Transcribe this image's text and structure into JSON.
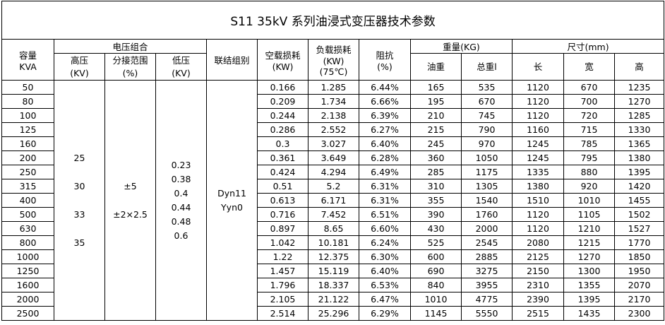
{
  "title": "S11 35kV  系列油浸式变压器技术参数",
  "headers": {
    "capacity": [
      "容量",
      "KVA"
    ],
    "voltage_group": "电压组合",
    "hv": [
      "高压",
      "(KV)"
    ],
    "tap": [
      "分接范围",
      "(%)"
    ],
    "lv": [
      "低压",
      "(KV)"
    ],
    "connection": "联结组别",
    "no_load_loss": [
      "空载损耗",
      "(KW)"
    ],
    "load_loss": [
      "负载损耗",
      "(KW)",
      "(75℃)"
    ],
    "impedance": [
      "阻抗",
      "(%)"
    ],
    "weight": "重量(KG)",
    "oil_weight": "油重",
    "total_weight": "总重l",
    "dimension": "尺寸(mm)",
    "length": "长",
    "width": "宽",
    "height": "高"
  },
  "merged": {
    "hv_values": [
      "25",
      "30",
      "33",
      "35"
    ],
    "tap_values": [
      "±5",
      "±2×2.5"
    ],
    "lv_values": [
      "0.23",
      "0.38",
      "0.4",
      "0.44",
      "0.48",
      "0.6"
    ],
    "connection_values": [
      "Dyn11",
      "Yyn0"
    ]
  },
  "rows": [
    [
      "50",
      "0.166",
      "1.285",
      "6.44%",
      "165",
      "535",
      "1120",
      "670",
      "1235"
    ],
    [
      "80",
      "0.209",
      "1.734",
      "6.66%",
      "195",
      "670",
      "1120",
      "700",
      "1270"
    ],
    [
      "100",
      "0.244",
      "2.138",
      "6.39%",
      "210",
      "745",
      "1120",
      "720",
      "1285"
    ],
    [
      "125",
      "0.286",
      "2.552",
      "6.27%",
      "215",
      "790",
      "1160",
      "715",
      "1330"
    ],
    [
      "160",
      "0.3",
      "3.027",
      "6.40%",
      "245",
      "970",
      "1245",
      "785",
      "1365"
    ],
    [
      "200",
      "0.361",
      "3.649",
      "6.28%",
      "360",
      "1050",
      "1245",
      "795",
      "1380"
    ],
    [
      "250",
      "0.424",
      "4.294",
      "6.49%",
      "285",
      "1175",
      "1335",
      "880",
      "1395"
    ],
    [
      "315",
      "0.51",
      "5.2",
      "6.31%",
      "310",
      "1305",
      "1380",
      "920",
      "1420"
    ],
    [
      "400",
      "0.613",
      "6.171",
      "6.31%",
      "355",
      "1540",
      "1510",
      "1010",
      "1455"
    ],
    [
      "500",
      "0.716",
      "7.452",
      "6.51%",
      "390",
      "1760",
      "1120",
      "1105",
      "1502"
    ],
    [
      "630",
      "0.897",
      "8.65",
      "6.60%",
      "430",
      "2000",
      "1120",
      "1210",
      "1527"
    ],
    [
      "800",
      "1.042",
      "10.181",
      "6.24%",
      "525",
      "2545",
      "2080",
      "1215",
      "1770"
    ],
    [
      "1000",
      "1.22",
      "12.375",
      "6.30%",
      "600",
      "2885",
      "2125",
      "1270",
      "1850"
    ],
    [
      "1250",
      "1.457",
      "15.119",
      "6.40%",
      "690",
      "3275",
      "2150",
      "1300",
      "1950"
    ],
    [
      "1600",
      "1.796",
      "18.337",
      "6.53%",
      "840",
      "3955",
      "2310",
      "1355",
      "2070"
    ],
    [
      "2000",
      "2.105",
      "21.122",
      "6.47%",
      "1010",
      "4775",
      "2390",
      "1395",
      "2170"
    ],
    [
      "2500",
      "2.514",
      "25.296",
      "6.29%",
      "1145",
      "5550",
      "2515",
      "1435",
      "2300"
    ]
  ]
}
